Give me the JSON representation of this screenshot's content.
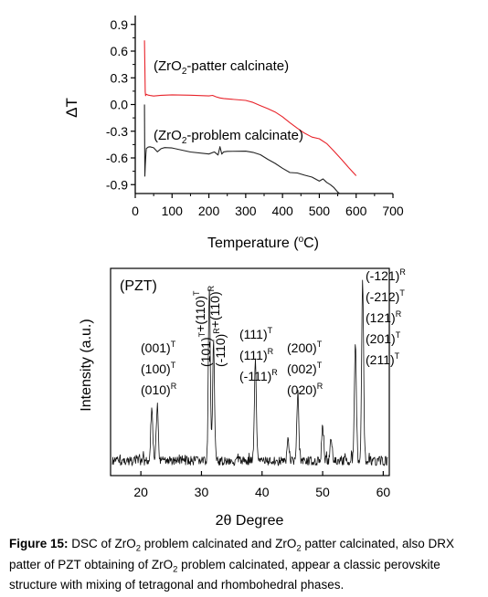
{
  "chart_data": [
    {
      "type": "line",
      "ylabel": "ΔT",
      "xlabel_main": "Temperature (",
      "xlabel_sup": "o",
      "xlabel_end": "C)",
      "xlim": [
        0,
        700
      ],
      "ylim": [
        -1.0,
        1.0
      ],
      "x_ticks": [
        0,
        100,
        200,
        300,
        400,
        500,
        600,
        700
      ],
      "y_ticks": [
        -0.9,
        -0.6,
        -0.3,
        0.0,
        0.3,
        0.6,
        0.9
      ],
      "y_tick_labels": [
        "-0.9",
        "-0.6",
        "-0.3",
        "0.0",
        "0.3",
        "0.6",
        "0.9"
      ],
      "annotations": [
        {
          "pre": "(ZrO",
          "sub": "2",
          "post": "-patter calcinate)"
        },
        {
          "pre": "(ZrO",
          "sub": "2",
          "post": "-problem calcinate)"
        }
      ],
      "series": [
        {
          "color": "#e8232a",
          "x": [
            25,
            26,
            27,
            28,
            30,
            35,
            40,
            50,
            70,
            100,
            150,
            200,
            210,
            220,
            230,
            240,
            250,
            300,
            320,
            340,
            360,
            380,
            400,
            420,
            440,
            460,
            480,
            500,
            520,
            540,
            560,
            580,
            600
          ],
          "y": [
            0.72,
            0.45,
            0.15,
            0.1,
            0.11,
            0.1,
            0.1,
            0.1,
            0.11,
            0.11,
            0.1,
            0.09,
            0.1,
            0.09,
            0.08,
            0.07,
            0.06,
            0.04,
            0.02,
            -0.01,
            -0.04,
            -0.08,
            -0.14,
            -0.21,
            -0.27,
            -0.32,
            -0.36,
            -0.38,
            -0.44,
            -0.53,
            -0.62,
            -0.71,
            -0.8
          ]
        },
        {
          "color": "#222222",
          "x": [
            25,
            26,
            27,
            29,
            30,
            35,
            40,
            50,
            60,
            70,
            80,
            100,
            150,
            200,
            215,
            225,
            230,
            235,
            240,
            250,
            300,
            320,
            340,
            360,
            380,
            400,
            420,
            440,
            460,
            480,
            500,
            510,
            520,
            530,
            540,
            550,
            555
          ],
          "y": [
            0.0,
            -0.8,
            -0.7,
            -0.55,
            -0.5,
            -0.48,
            -0.47,
            -0.48,
            -0.53,
            -0.5,
            -0.49,
            -0.49,
            -0.53,
            -0.55,
            -0.53,
            -0.57,
            -0.48,
            -0.56,
            -0.53,
            -0.52,
            -0.52,
            -0.54,
            -0.57,
            -0.62,
            -0.66,
            -0.71,
            -0.76,
            -0.77,
            -0.8,
            -0.82,
            -0.86,
            -0.83,
            -0.87,
            -0.9,
            -0.94,
            -0.99,
            -1.0
          ]
        }
      ]
    },
    {
      "type": "line",
      "ylabel": "Intensity (a.u.)",
      "xlabel": "2θ Degree",
      "xlim": [
        15,
        61
      ],
      "x_ticks": [
        20,
        30,
        40,
        50,
        60
      ],
      "title_label": "(PZT)",
      "peaks": [
        {
          "x": 21.8,
          "h": 0.3
        },
        {
          "x": 22.7,
          "h": 0.31
        },
        {
          "x": 31.3,
          "h": 0.96
        },
        {
          "x": 32.0,
          "h": 0.63
        },
        {
          "x": 38.9,
          "h": 0.54
        },
        {
          "x": 44.3,
          "h": 0.12
        },
        {
          "x": 45.9,
          "h": 0.38
        },
        {
          "x": 50.0,
          "h": 0.19
        },
        {
          "x": 51.4,
          "h": 0.14
        },
        {
          "x": 55.4,
          "h": 0.65
        },
        {
          "x": 56.6,
          "h": 0.99
        }
      ],
      "peak_labels": [
        {
          "lines": [
            [
              "(001)",
              "T"
            ],
            [
              "(100)",
              "T"
            ],
            [
              "(010)",
              "R"
            ]
          ]
        },
        {
          "lines": [
            [
              "(101)",
              "T",
              "+(110)",
              "T"
            ]
          ],
          "rotated": true
        },
        {
          "lines": [
            [
              "(-110)",
              "R",
              "+(110)",
              "R"
            ]
          ],
          "rotated": true
        },
        {
          "lines": [
            [
              "(111)",
              "T"
            ],
            [
              "(111)",
              "R"
            ],
            [
              "(-111)",
              "R"
            ]
          ]
        },
        {
          "lines": [
            [
              "(200)",
              "T"
            ],
            [
              "(002)",
              "T"
            ],
            [
              "(020)",
              "R"
            ]
          ]
        },
        {
          "lines": [
            [
              "(-121)",
              "R"
            ],
            [
              "(-212)",
              "T"
            ],
            [
              "(121)",
              "R"
            ],
            [
              "(201)",
              "T"
            ],
            [
              "(211)",
              "T"
            ]
          ]
        }
      ]
    }
  ],
  "caption": {
    "label": "Figure 15:",
    "parts": [
      {
        "t": " DSC of ZrO"
      },
      {
        "sub": "2"
      },
      {
        "t": " problem calcinated and ZrO"
      },
      {
        "sub": "2"
      },
      {
        "t": " patter calcinated, also DRX patter of PZT obtaining of ZrO"
      },
      {
        "sub": "2"
      },
      {
        "t": " problem calcinated, appear a classic perovskite structure with mixing of tetragonal and rhombohedral phases."
      }
    ]
  }
}
